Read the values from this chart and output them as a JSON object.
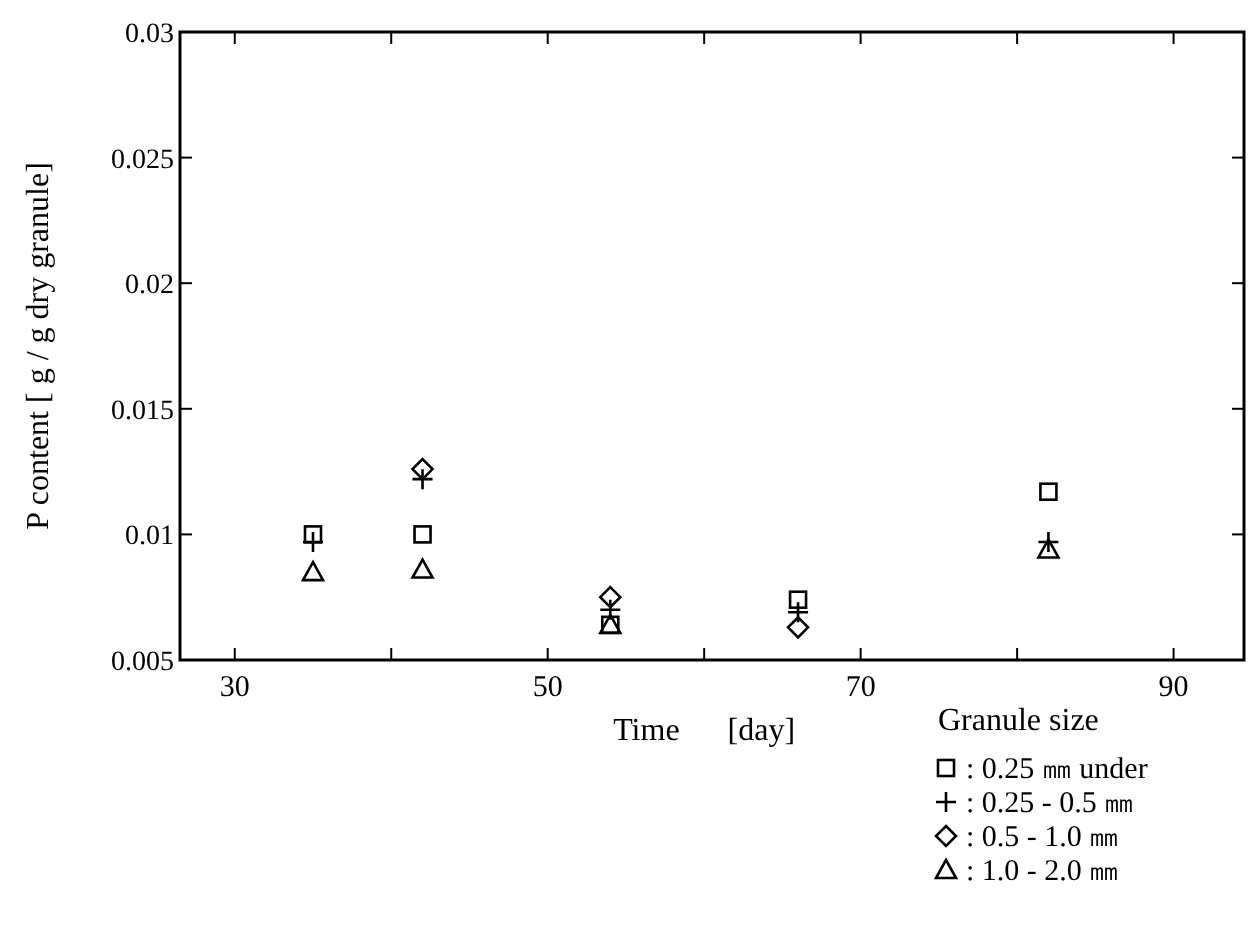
{
  "chart_data": {
    "type": "scatter",
    "xlabel": "Time      [day]",
    "ylabel": "P content [ g / g dry granule]",
    "legend_title": "Granule size",
    "x": [
      35,
      42,
      54,
      66,
      82
    ],
    "xlim": [
      26.5,
      94.5
    ],
    "xticks": [
      30,
      {
        "value": 40,
        "label": null
      },
      50,
      {
        "value": 60,
        "label": null
      },
      70,
      {
        "value": 80,
        "label": null
      },
      90
    ],
    "ylim": [
      0.005,
      0.03
    ],
    "yticks": [
      0.005,
      0.01,
      0.015,
      0.02,
      0.025,
      0.03
    ],
    "legend": "bottom right",
    "grid": false,
    "series": [
      {
        "name": ": 0.25 ㎜ under",
        "color": "#000000",
        "marker": "square",
        "values": [
          0.01,
          0.01,
          0.0064,
          0.0074,
          0.0117
        ]
      },
      {
        "name": ": 0.25 - 0.5 ㎜",
        "color": "#000000",
        "marker": "cross",
        "values": [
          0.0097,
          0.0122,
          0.007,
          0.0069,
          0.0097
        ]
      },
      {
        "name": ": 0.5 - 1.0 ㎜",
        "color": "#000000",
        "marker": "diamond",
        "values": [
          null,
          0.0126,
          0.0075,
          0.0063,
          null
        ]
      },
      {
        "name": ": 1.0 - 2.0 ㎜",
        "color": "#000000",
        "marker": "triangle",
        "values": [
          0.0085,
          0.0086,
          0.0064,
          null,
          0.0094
        ]
      }
    ]
  }
}
